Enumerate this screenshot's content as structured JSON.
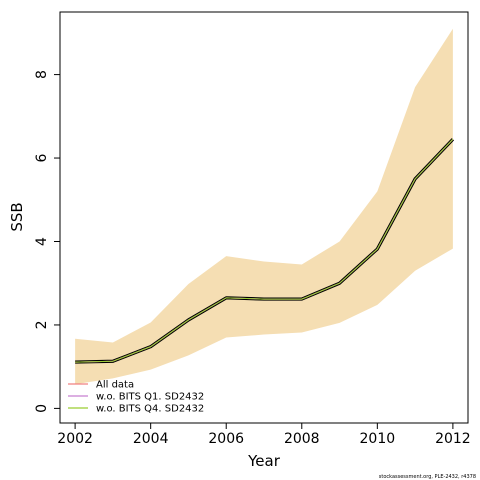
{
  "chart_data": {
    "type": "line",
    "xlabel": "Year",
    "ylabel": "SSB",
    "xlim": [
      2001.6,
      2012.4
    ],
    "ylim": [
      -0.35,
      9.5
    ],
    "xticks": [
      2002,
      2004,
      2006,
      2008,
      2010,
      2012
    ],
    "yticks": [
      0,
      2,
      4,
      6,
      8
    ],
    "grid": false,
    "legend_position": "bottom-left",
    "band_color": "#f5deb3",
    "x": [
      2002,
      2003,
      2004,
      2005,
      2006,
      2007,
      2008,
      2009,
      2010,
      2011,
      2012
    ],
    "estimate": [
      1.11,
      1.13,
      1.48,
      2.12,
      2.65,
      2.62,
      2.62,
      3.0,
      3.82,
      5.5,
      6.45
    ],
    "lower": [
      0.58,
      0.72,
      0.93,
      1.27,
      1.7,
      1.77,
      1.82,
      2.05,
      2.48,
      3.3,
      3.83
    ],
    "upper": [
      1.67,
      1.58,
      2.06,
      2.98,
      3.65,
      3.52,
      3.45,
      4.0,
      5.2,
      7.7,
      9.1
    ],
    "series": [
      {
        "name": "All data",
        "color": "#f08080",
        "values": [
          1.11,
          1.13,
          1.48,
          2.12,
          2.65,
          2.62,
          2.62,
          3.0,
          3.82,
          5.5,
          6.45
        ]
      },
      {
        "name": "w.o. BITS Q1. SD2432",
        "color": "#c77fd0",
        "values": [
          1.11,
          1.13,
          1.48,
          2.12,
          2.65,
          2.62,
          2.62,
          3.0,
          3.82,
          5.5,
          6.45
        ]
      },
      {
        "name": "w.o. BITS Q4. SD2432",
        "color": "#9acd32",
        "values": [
          1.11,
          1.13,
          1.48,
          2.12,
          2.65,
          2.62,
          2.62,
          3.0,
          3.82,
          5.5,
          6.45
        ]
      }
    ],
    "footer": "stockassessment.org, PLE-2432, r4378"
  }
}
